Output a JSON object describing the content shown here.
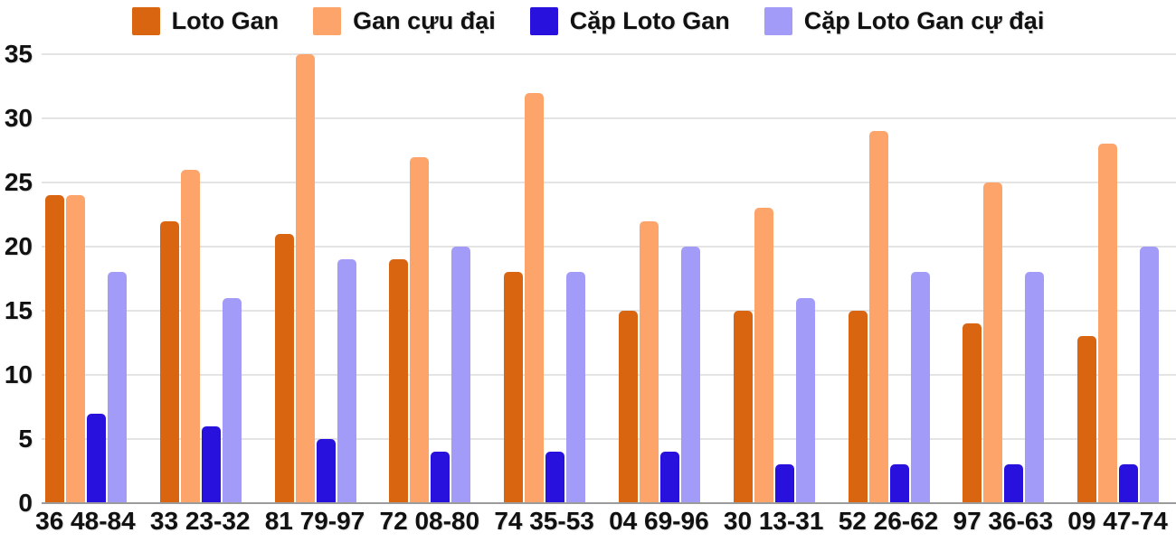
{
  "chart_data": {
    "type": "bar",
    "title": "",
    "xlabel": "",
    "ylabel": "",
    "ylim": [
      0,
      35
    ],
    "yticks": [
      0,
      5,
      10,
      15,
      20,
      25,
      30,
      35
    ],
    "grid": true,
    "legend_position": "top",
    "categories": [
      "36 48-84",
      "33 23-32",
      "81 79-97",
      "72 08-80",
      "74 35-53",
      "04 69-96",
      "30 13-31",
      "52 26-62",
      "97 36-63",
      "09 47-74"
    ],
    "series": [
      {
        "name": "Loto Gan",
        "color": "#d96511",
        "values": [
          24,
          22,
          21,
          19,
          18,
          15,
          15,
          15,
          14,
          13
        ]
      },
      {
        "name": "Gan cựu đại",
        "color": "#fca46a",
        "values": [
          24,
          26,
          35,
          27,
          32,
          22,
          23,
          29,
          25,
          28
        ]
      },
      {
        "name": "Cặp Loto Gan",
        "color": "#2911dd",
        "values": [
          7,
          6,
          5,
          4,
          4,
          4,
          3,
          3,
          3,
          3
        ]
      },
      {
        "name": "Cặp Loto Gan cự đại",
        "color": "#a29bf7",
        "values": [
          18,
          16,
          19,
          20,
          18,
          20,
          16,
          18,
          18,
          20
        ]
      }
    ],
    "colors": {
      "gridline": "#e4e4e4",
      "axis_line": "#9b9b9b",
      "label_text": "#111111",
      "background": "#ffffff"
    }
  }
}
